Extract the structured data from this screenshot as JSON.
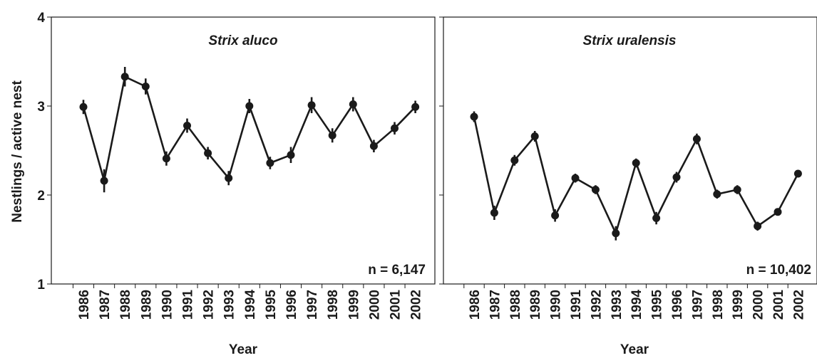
{
  "chart_data": [
    {
      "type": "line",
      "title": "Strix aluco",
      "annotation": "n = 6,147",
      "xlabel": "Year",
      "ylabel": "Nestlings / active nest",
      "ylim": [
        1,
        4
      ],
      "yticks": [
        "1",
        "2",
        "3",
        "4"
      ],
      "categories": [
        "1986",
        "1987",
        "1988",
        "1989",
        "1990",
        "1991",
        "1992",
        "1993",
        "1994",
        "1995",
        "1996",
        "1997",
        "1998",
        "1999",
        "2000",
        "2001",
        "2002"
      ],
      "values": [
        2.99,
        2.16,
        3.33,
        3.22,
        2.41,
        2.78,
        2.47,
        2.19,
        3.0,
        2.36,
        2.45,
        3.01,
        2.67,
        3.02,
        2.55,
        2.75,
        2.99
      ],
      "error": [
        0.08,
        0.13,
        0.11,
        0.09,
        0.08,
        0.08,
        0.07,
        0.08,
        0.08,
        0.07,
        0.09,
        0.09,
        0.08,
        0.08,
        0.07,
        0.07,
        0.07
      ],
      "grid": false
    },
    {
      "type": "line",
      "title": "Strix uralensis",
      "annotation": "n = 10,402",
      "xlabel": "Year",
      "ylabel": "",
      "ylim": [
        1,
        4
      ],
      "yticks": [
        "",
        "",
        "",
        ""
      ],
      "categories": [
        "1986",
        "1987",
        "1988",
        "1989",
        "1990",
        "1991",
        "1992",
        "1993",
        "1994",
        "1995",
        "1996",
        "1997",
        "1998",
        "1999",
        "2000",
        "2001",
        "2002"
      ],
      "values": [
        2.88,
        1.8,
        2.39,
        2.66,
        1.77,
        2.19,
        2.06,
        1.57,
        2.36,
        1.74,
        2.2,
        2.63,
        2.01,
        2.06,
        1.65,
        1.81,
        2.24
      ],
      "error": [
        0.06,
        0.08,
        0.06,
        0.06,
        0.07,
        0.05,
        0.05,
        0.08,
        0.05,
        0.07,
        0.06,
        0.06,
        0.05,
        0.05,
        0.05,
        0.04,
        0.04
      ],
      "grid": false
    }
  ]
}
